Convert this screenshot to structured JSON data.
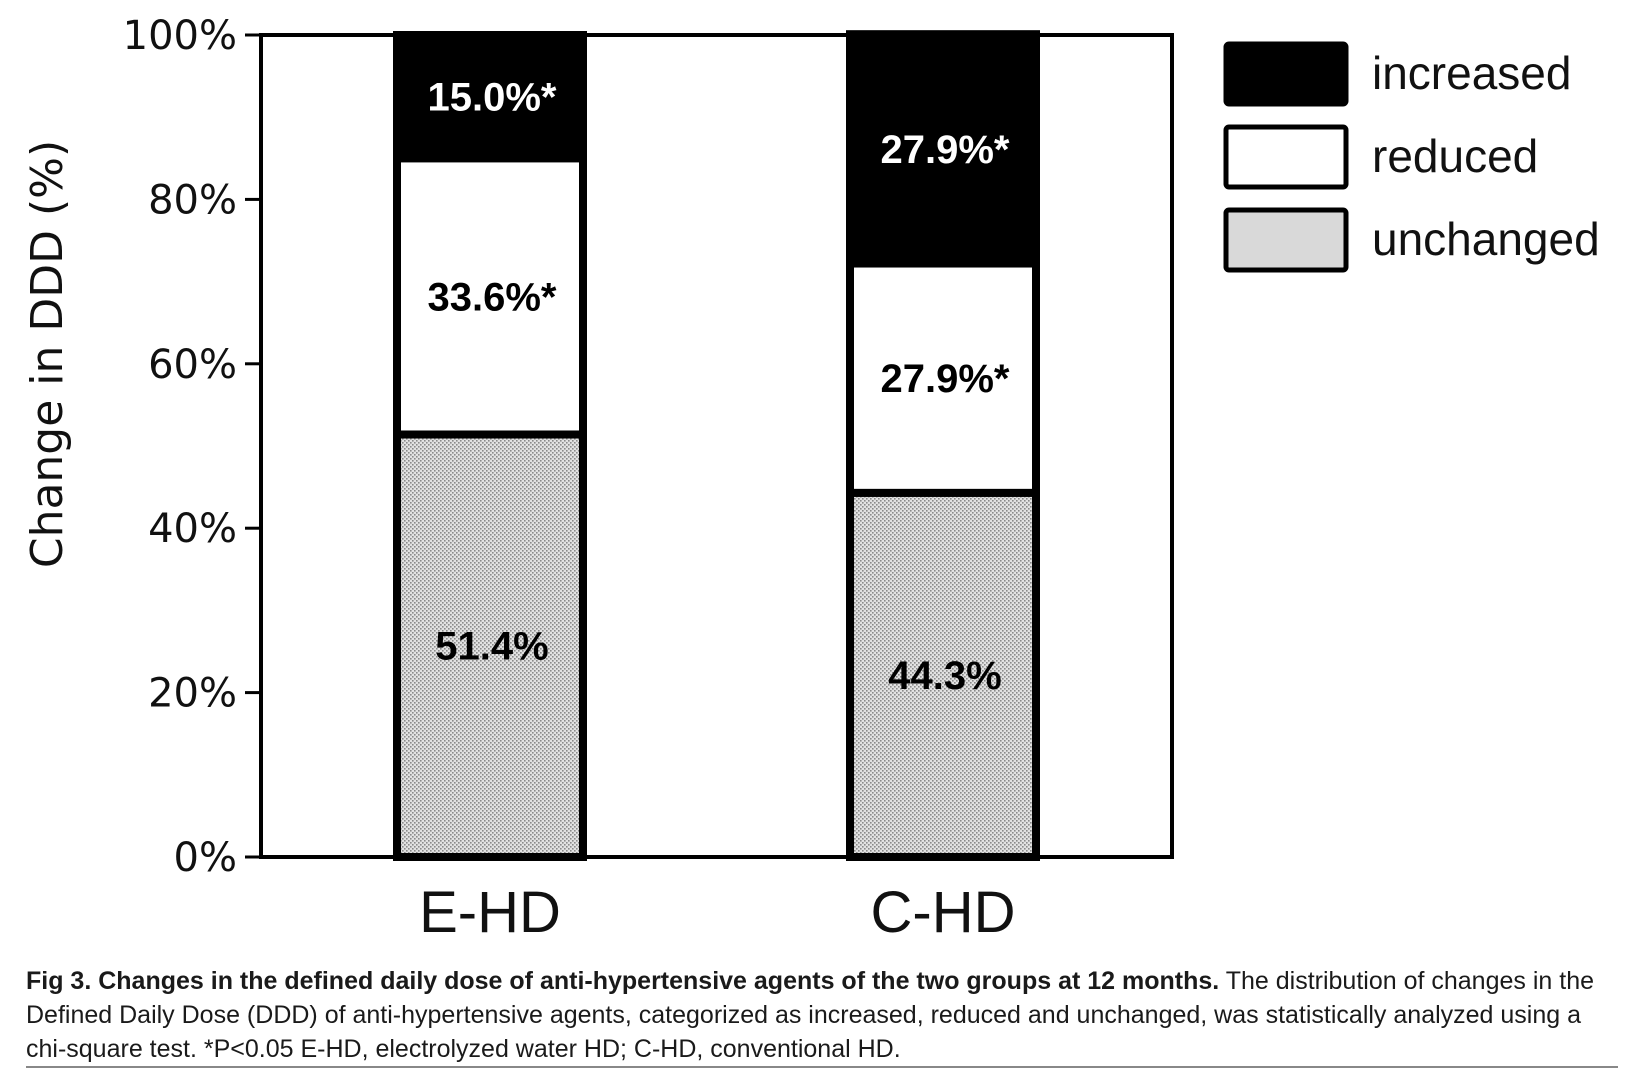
{
  "chart_data": {
    "type": "bar",
    "stacked": true,
    "categories": [
      "E-HD",
      "C-HD"
    ],
    "series": [
      {
        "name": "unchanged",
        "values": [
          51.4,
          44.3
        ],
        "labels": [
          "51.4%",
          "44.3%"
        ],
        "fill": "#d9d9d9",
        "text_color": "#000000"
      },
      {
        "name": "reduced",
        "values": [
          33.6,
          27.9
        ],
        "labels": [
          "33.6%*",
          "27.9%*"
        ],
        "fill": "#ffffff",
        "text_color": "#000000"
      },
      {
        "name": "increased",
        "values": [
          15.0,
          27.9
        ],
        "labels": [
          "15.0%*",
          "27.9%*"
        ],
        "fill": "#000000",
        "text_color": "#ffffff"
      }
    ],
    "legend": {
      "position": "top-right",
      "entries": [
        {
          "name": "increased",
          "fill": "#000000"
        },
        {
          "name": "reduced",
          "fill": "#ffffff"
        },
        {
          "name": "unchanged",
          "fill": "#d9d9d9"
        }
      ]
    },
    "ylabel": "Change in DDD (%)",
    "xlabel": "",
    "ylim": [
      0,
      100
    ],
    "yticks": [
      "0%",
      "20%",
      "40%",
      "60%",
      "80%",
      "100%"
    ],
    "grid": false
  },
  "caption": {
    "title": "Fig 3.  Changes in the defined daily dose of anti-hypertensive agents of the two groups at 12 months.",
    "text": " The distribution of changes in the Defined Daily Dose (DDD) of anti-hypertensive agents, categorized as increased, reduced and unchanged, was statistically analyzed using a chi-square test. *P<0.05 E-HD, electrolyzed water HD; C-HD, conventional HD."
  }
}
